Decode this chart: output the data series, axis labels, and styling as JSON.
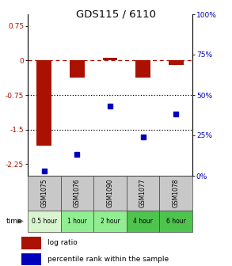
{
  "title": "GDS115 / 6110",
  "samples": [
    "GSM1075",
    "GSM1076",
    "GSM1090",
    "GSM1077",
    "GSM1078"
  ],
  "time_labels": [
    "0.5 hour",
    "1 hour",
    "2 hour",
    "4 hour",
    "6 hour"
  ],
  "time_colors": [
    "#d9f5d0",
    "#90ee90",
    "#90ee90",
    "#4ec44e",
    "#4ec44e"
  ],
  "log_ratios": [
    -1.85,
    -0.38,
    0.05,
    -0.38,
    -0.1
  ],
  "percentile_ranks": [
    3,
    13,
    43,
    24,
    38
  ],
  "bar_color": "#aa1100",
  "dot_color": "#0000bb",
  "ylim_left": [
    -2.5,
    1.0
  ],
  "ylim_right": [
    0,
    100
  ],
  "yticks_left": [
    0.75,
    0.0,
    -0.75,
    -1.5,
    -2.25
  ],
  "yticks_right": [
    100,
    75,
    50,
    25,
    0
  ],
  "bg_color_plot": "#ffffff",
  "bg_color_gsm": "#c8c8c8",
  "xlabel_time": "time",
  "legend_logratio": "log ratio",
  "legend_percentile": "percentile rank within the sample"
}
